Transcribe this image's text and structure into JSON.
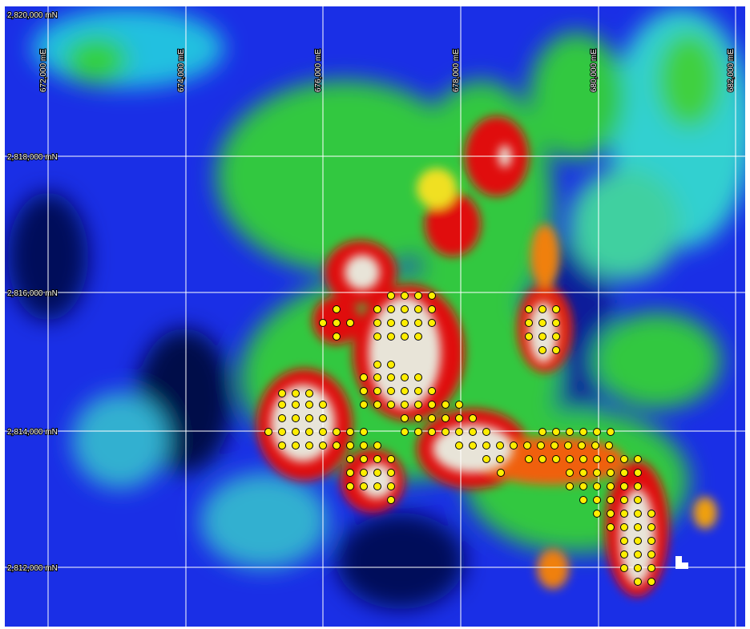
{
  "grid": {
    "northings": [
      "2,820,000 mN",
      "2,818,000 mN",
      "2,816,000 mN",
      "2,814,000 mN",
      "2,812,000 mN"
    ],
    "eastings": [
      "672,000 mE",
      "674,000 mE",
      "676,000 mE",
      "678,000 mE",
      "680,000 mE",
      "682,000 mE"
    ]
  }
}
